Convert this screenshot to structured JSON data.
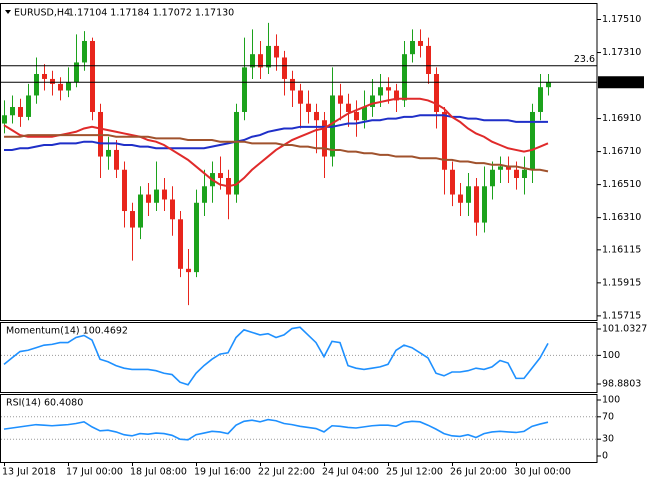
{
  "chart_data": [
    {
      "type": "candlestick",
      "title": "EURUSD,H4",
      "subtitle": "1.17104 1.17184 1.17072 1.17130",
      "up_color": "#1ca21c",
      "down_color": "#e8251c",
      "categories": [
        "13 Jul 2018",
        null,
        null,
        null,
        null,
        null,
        null,
        null,
        "17 Jul 00:00",
        null,
        null,
        null,
        null,
        null,
        null,
        null,
        "18 Jul 08:00",
        null,
        null,
        null,
        null,
        null,
        null,
        null,
        "19 Jul 16:00",
        null,
        null,
        null,
        null,
        null,
        null,
        null,
        "22 Jul 22:00",
        null,
        null,
        null,
        null,
        null,
        null,
        null,
        "24 Jul 04:00",
        null,
        null,
        null,
        null,
        null,
        null,
        null,
        "25 Jul 12:00",
        null,
        null,
        null,
        null,
        null,
        null,
        null,
        "26 Jul 20:00",
        null,
        null,
        null,
        null,
        null,
        null,
        null,
        "30 Jul 00:00",
        null,
        null,
        null,
        null
      ],
      "open": [
        1.1688,
        1.1693,
        1.1698,
        1.1692,
        1.1705,
        1.1718,
        1.1715,
        1.1712,
        1.1708,
        1.1713,
        1.1725,
        1.1738,
        1.1695,
        1.1668,
        1.1672,
        1.166,
        1.1635,
        1.1625,
        1.1645,
        1.164,
        1.1648,
        1.1642,
        1.163,
        1.16,
        1.1598,
        1.164,
        1.165,
        1.1658,
        1.1655,
        1.1645,
        1.1695,
        1.1722,
        1.173,
        1.1722,
        1.1735,
        1.1728,
        1.1715,
        1.1708,
        1.17,
        1.1695,
        1.169,
        1.1668,
        1.1705,
        1.17,
        1.1695,
        1.169,
        1.1698,
        1.1705,
        1.171,
        1.1708,
        1.1702,
        1.173,
        1.1738,
        1.1735,
        1.1718,
        1.1695,
        1.166,
        1.1645,
        1.164,
        1.165,
        1.1628,
        1.165,
        1.166,
        1.1662,
        1.166,
        1.1655,
        1.166,
        1.1695,
        1.171
      ],
      "high": [
        1.1702,
        1.1705,
        1.1703,
        1.1712,
        1.1728,
        1.1724,
        1.172,
        1.1716,
        1.1722,
        1.1742,
        1.1744,
        1.174,
        1.17,
        1.168,
        1.1678,
        1.1665,
        1.164,
        1.165,
        1.1652,
        1.1665,
        1.1655,
        1.165,
        1.1635,
        1.1612,
        1.1648,
        1.166,
        1.1665,
        1.1668,
        1.166,
        1.17,
        1.174,
        1.1745,
        1.1738,
        1.1749,
        1.1742,
        1.1732,
        1.172,
        1.1712,
        1.1708,
        1.17,
        1.1695,
        1.1722,
        1.1712,
        1.1706,
        1.1702,
        1.1708,
        1.1715,
        1.1718,
        1.1716,
        1.1712,
        1.1738,
        1.1745,
        1.1745,
        1.174,
        1.1722,
        1.1698,
        1.1665,
        1.1652,
        1.1658,
        1.1655,
        1.1662,
        1.1665,
        1.1668,
        1.1668,
        1.1665,
        1.1668,
        1.17,
        1.1718,
        1.1718
      ],
      "low": [
        1.1682,
        1.1688,
        1.1686,
        1.169,
        1.17,
        1.1708,
        1.1705,
        1.1702,
        1.1704,
        1.171,
        1.172,
        1.169,
        1.1655,
        1.166,
        1.1655,
        1.1625,
        1.1605,
        1.1618,
        1.1632,
        1.1635,
        1.1635,
        1.162,
        1.1595,
        1.1578,
        1.1595,
        1.1632,
        1.164,
        1.1648,
        1.163,
        1.164,
        1.169,
        1.1715,
        1.1715,
        1.1718,
        1.172,
        1.1705,
        1.1698,
        1.1685,
        1.1688,
        1.167,
        1.1655,
        1.1662,
        1.169,
        1.1686,
        1.168,
        1.1685,
        1.1692,
        1.1698,
        1.17,
        1.1695,
        1.1698,
        1.1725,
        1.1728,
        1.1712,
        1.1685,
        1.1645,
        1.1638,
        1.1632,
        1.1632,
        1.162,
        1.1622,
        1.1642,
        1.1652,
        1.1652,
        1.1648,
        1.1645,
        1.1652,
        1.169,
        1.1705
      ],
      "close": [
        1.1693,
        1.1698,
        1.1692,
        1.1705,
        1.1718,
        1.1715,
        1.1712,
        1.1708,
        1.1713,
        1.1725,
        1.1738,
        1.1695,
        1.1668,
        1.1672,
        1.166,
        1.1635,
        1.1625,
        1.1645,
        1.164,
        1.1648,
        1.1642,
        1.163,
        1.16,
        1.1598,
        1.164,
        1.165,
        1.1658,
        1.1655,
        1.1645,
        1.1695,
        1.1722,
        1.173,
        1.1722,
        1.1735,
        1.1728,
        1.1715,
        1.1708,
        1.17,
        1.1695,
        1.169,
        1.1668,
        1.1705,
        1.17,
        1.1695,
        1.169,
        1.1698,
        1.1705,
        1.171,
        1.1708,
        1.1702,
        1.173,
        1.1738,
        1.1735,
        1.1718,
        1.1695,
        1.166,
        1.1645,
        1.164,
        1.165,
        1.1628,
        1.165,
        1.166,
        1.1662,
        1.166,
        1.1655,
        1.166,
        1.1695,
        1.171,
        1.1713
      ],
      "series": [
        {
          "color": "#1f2fc8",
          "values": [
            1.1672,
            1.1672,
            1.1673,
            1.1673,
            1.1674,
            1.1675,
            1.1675,
            1.1676,
            1.1676,
            1.1676,
            1.1677,
            1.1677,
            1.1676,
            1.1676,
            1.1676,
            1.1675,
            1.1675,
            1.1674,
            1.1674,
            1.1673,
            1.1673,
            1.1673,
            1.1673,
            1.1673,
            1.1673,
            1.1673,
            1.1674,
            1.1675,
            1.1676,
            1.1677,
            1.1678,
            1.168,
            1.1681,
            1.1683,
            1.1684,
            1.1685,
            1.1685,
            1.1686,
            1.1686,
            1.1686,
            1.1686,
            1.1686,
            1.1687,
            1.1688,
            1.1688,
            1.1689,
            1.169,
            1.169,
            1.1691,
            1.1691,
            1.1692,
            1.1692,
            1.1693,
            1.1693,
            1.1693,
            1.1693,
            1.1692,
            1.1692,
            1.1691,
            1.1691,
            1.169,
            1.169,
            1.169,
            1.169,
            1.1689,
            1.1689,
            1.1689,
            1.1689,
            1.1689
          ]
        },
        {
          "color": "#e02a2a",
          "values": [
            1.1687,
            1.1684,
            1.1681,
            1.168,
            1.168,
            1.168,
            1.168,
            1.1681,
            1.1682,
            1.1683,
            1.1685,
            1.1686,
            1.1685,
            1.1684,
            1.1683,
            1.1682,
            1.1681,
            1.168,
            1.1678,
            1.1677,
            1.1675,
            1.1672,
            1.1669,
            1.1666,
            1.1662,
            1.1658,
            1.1654,
            1.1651,
            1.165,
            1.1651,
            1.1655,
            1.166,
            1.1664,
            1.1668,
            1.1672,
            1.1675,
            1.1678,
            1.168,
            1.1682,
            1.1684,
            1.1685,
            1.1688,
            1.1691,
            1.1694,
            1.1696,
            1.1698,
            1.17,
            1.1701,
            1.1702,
            1.1703,
            1.1703,
            1.1703,
            1.1703,
            1.1702,
            1.17,
            1.1697,
            1.1692,
            1.1689,
            1.1685,
            1.1682,
            1.168,
            1.1677,
            1.1675,
            1.1673,
            1.1672,
            1.1671,
            1.1672,
            1.1674,
            1.1676
          ]
        },
        {
          "color": "#a0522d",
          "values": [
            1.168,
            1.168,
            1.168,
            1.1681,
            1.1681,
            1.1681,
            1.1681,
            1.1681,
            1.1681,
            1.1681,
            1.1681,
            1.1681,
            1.1681,
            1.1681,
            1.168,
            1.168,
            1.168,
            1.168,
            1.168,
            1.1679,
            1.1679,
            1.1679,
            1.1679,
            1.1678,
            1.1678,
            1.1678,
            1.1678,
            1.1677,
            1.1677,
            1.1677,
            1.1677,
            1.1676,
            1.1676,
            1.1676,
            1.1676,
            1.1675,
            1.1675,
            1.1674,
            1.1674,
            1.1673,
            1.1673,
            1.1672,
            1.1672,
            1.1671,
            1.1671,
            1.167,
            1.167,
            1.1669,
            1.1669,
            1.1668,
            1.1668,
            1.1668,
            1.1667,
            1.1667,
            1.1667,
            1.1666,
            1.1666,
            1.1665,
            1.1665,
            1.1664,
            1.1664,
            1.1663,
            1.1663,
            1.1662,
            1.1662,
            1.1661,
            1.166,
            1.166,
            1.1659
          ]
        }
      ],
      "ylim": [
        1.1569,
        1.1761
      ],
      "yticks": [
        {
          "value": 1.1751,
          "label": "1.17510"
        },
        {
          "value": 1.1731,
          "label": "1.17310"
        },
        {
          "value": 1.1691,
          "label": "1.16910"
        },
        {
          "value": 1.1671,
          "label": "1.16710"
        },
        {
          "value": 1.1651,
          "label": "1.16510"
        },
        {
          "value": 1.1631,
          "label": "1.16310"
        },
        1.16115,
        1.15915,
        1.15715
      ],
      "hlines": [
        {
          "value": 1.1723,
          "label": "23.6"
        }
      ],
      "price_line": {
        "value": 1.1713,
        "label": "1.17130"
      }
    },
    {
      "type": "line",
      "title": "Momentum(14) 100.4692",
      "color": "#1e90ff",
      "values": [
        99.65,
        99.9,
        100.15,
        100.2,
        100.3,
        100.4,
        100.43,
        100.5,
        100.5,
        100.7,
        100.78,
        100.6,
        99.85,
        99.75,
        99.6,
        99.5,
        99.45,
        99.45,
        99.45,
        99.4,
        99.3,
        99.25,
        98.95,
        98.85,
        99.3,
        99.6,
        99.85,
        100.05,
        100.1,
        100.7,
        101.0,
        100.9,
        100.8,
        100.85,
        100.7,
        100.8,
        101.05,
        101.1,
        100.8,
        100.5,
        99.95,
        100.55,
        100.5,
        99.6,
        99.5,
        99.45,
        99.5,
        99.55,
        99.65,
        100.2,
        100.4,
        100.3,
        100.1,
        99.9,
        99.3,
        99.2,
        99.35,
        99.35,
        99.4,
        99.5,
        99.45,
        99.55,
        99.8,
        99.7,
        99.1,
        99.1,
        99.5,
        99.9,
        100.4692
      ],
      "ylim": [
        98.567,
        101.306
      ],
      "yticks": [
        101.0327,
        100,
        98.8803
      ],
      "levels": [
        100
      ]
    },
    {
      "type": "line",
      "title": "RSI(14) 60.4080",
      "color": "#1e90ff",
      "values": [
        48,
        50,
        52,
        54,
        56,
        55,
        54,
        55,
        56,
        58,
        61,
        52,
        45,
        46,
        43,
        38,
        36,
        40,
        39,
        41,
        40,
        37,
        30,
        29,
        38,
        41,
        44,
        43,
        40,
        55,
        62,
        64,
        61,
        65,
        63,
        58,
        56,
        53,
        51,
        49,
        43,
        54,
        53,
        51,
        50,
        52,
        54,
        55,
        55,
        53,
        60,
        62,
        61,
        55,
        48,
        40,
        36,
        35,
        38,
        33,
        40,
        43,
        44,
        43,
        42,
        44,
        53,
        57,
        60.408
      ],
      "ylim": [
        -10.7,
        110.7
      ],
      "yticks": [
        100,
        70,
        30,
        0
      ],
      "levels": [
        70,
        30
      ]
    }
  ]
}
